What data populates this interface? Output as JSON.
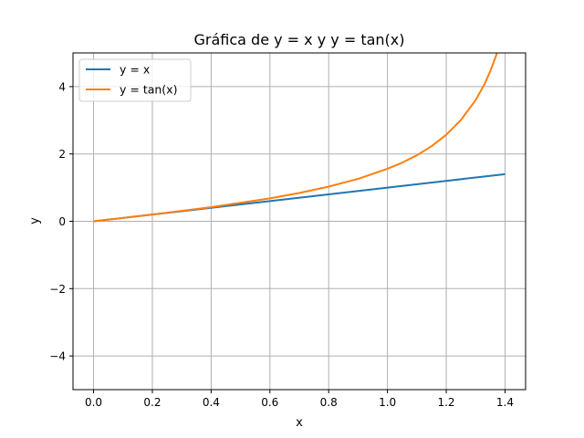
{
  "chart_data": {
    "type": "line",
    "title": "Gráfica de y = x y y = tan(x)",
    "xlabel": "x",
    "ylabel": "y",
    "xlim": [
      -0.07,
      1.47
    ],
    "ylim": [
      -5,
      5
    ],
    "xticks": [
      0.0,
      0.2,
      0.4,
      0.6,
      0.8,
      1.0,
      1.2,
      1.4
    ],
    "xtick_labels": [
      "0.0",
      "0.2",
      "0.4",
      "0.6",
      "0.8",
      "1.0",
      "1.2",
      "1.4"
    ],
    "yticks": [
      -4,
      -2,
      0,
      2,
      4
    ],
    "ytick_labels": [
      "−4",
      "−2",
      "0",
      "2",
      "4"
    ],
    "grid": true,
    "legend_position": "upper-left",
    "series": [
      {
        "name": "y = x",
        "color": "#1f77b4",
        "x": [
          0.0,
          0.2,
          0.4,
          0.6,
          0.8,
          1.0,
          1.2,
          1.4
        ],
        "y": [
          0.0,
          0.2,
          0.4,
          0.6,
          0.8,
          1.0,
          1.2,
          1.4
        ]
      },
      {
        "name": "y = tan(x)",
        "color": "#ff7f0e",
        "x": [
          0.0,
          0.1,
          0.2,
          0.3,
          0.4,
          0.5,
          0.6,
          0.7,
          0.8,
          0.9,
          1.0,
          1.05,
          1.1,
          1.15,
          1.2,
          1.25,
          1.3,
          1.33,
          1.35,
          1.37,
          1.38,
          1.39
        ],
        "y": [
          0.0,
          0.1,
          0.2,
          0.31,
          0.42,
          0.55,
          0.68,
          0.84,
          1.03,
          1.26,
          1.56,
          1.74,
          1.96,
          2.23,
          2.57,
          3.01,
          3.6,
          4.07,
          4.46,
          4.93,
          5.22,
          5.55
        ]
      }
    ]
  }
}
